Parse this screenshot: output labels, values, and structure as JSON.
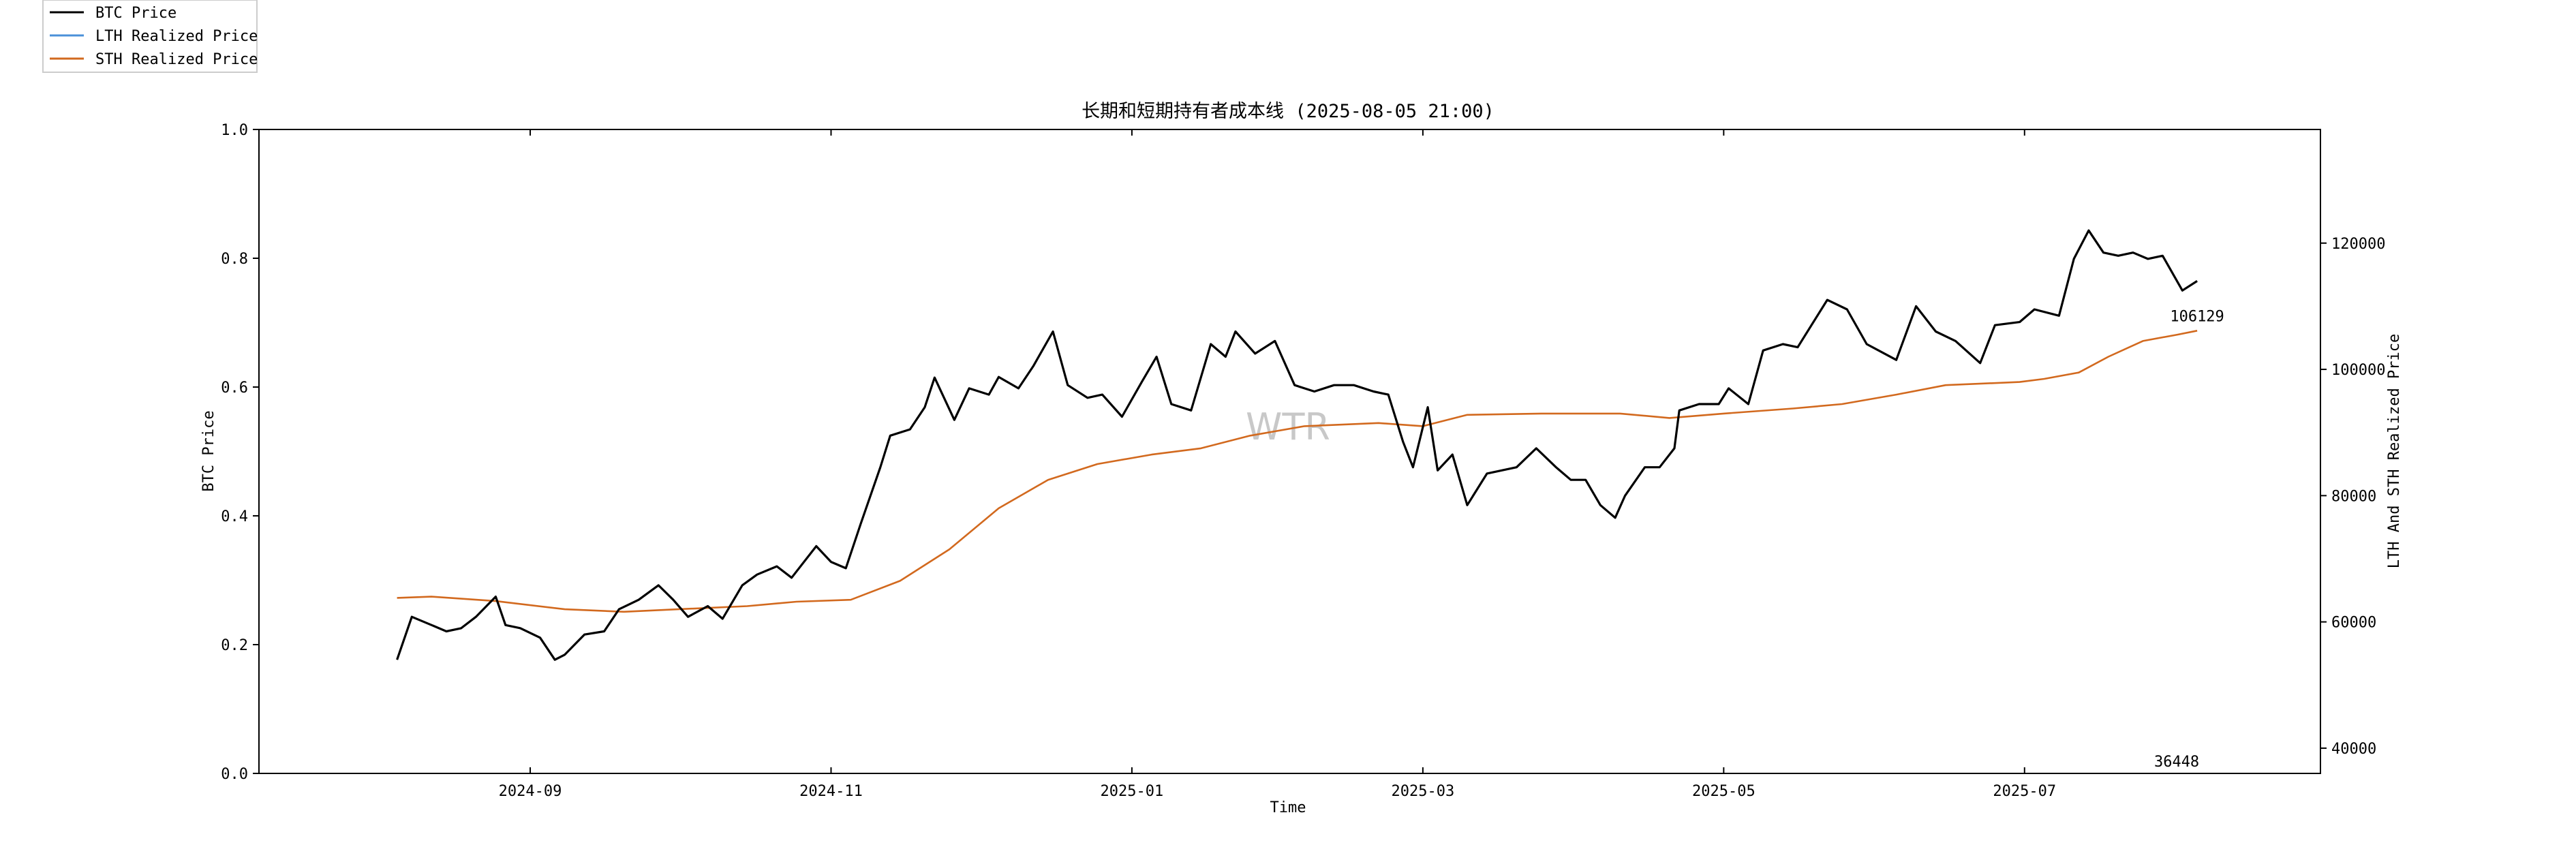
{
  "chart_data": {
    "type": "line",
    "title": "长期和短期持有者成本线 (2025-08-05 21:00)",
    "xlabel": "Time",
    "ylabel": "BTC Price",
    "ylabel_right": "LTH And STH Realized Price",
    "x_range": [
      "2024-07-08",
      "2025-08-30"
    ],
    "x_ticks": [
      "2024-09",
      "2024-11",
      "2025-01",
      "2025-03",
      "2025-05",
      "2025-07"
    ],
    "left_axis": {
      "ylim": [
        0.0,
        1.0
      ],
      "ticks": [
        "0.0",
        "0.2",
        "0.4",
        "0.6",
        "0.8",
        "1.0"
      ]
    },
    "right_axis": {
      "ylim": [
        36000,
        138000
      ],
      "ticks": [
        "40000",
        "60000",
        "80000",
        "100000",
        "120000"
      ]
    },
    "grid": false,
    "legend_position": "top-left",
    "watermark": "WTR",
    "annotations": [
      {
        "text": "106129",
        "series": "STH Realized Price",
        "at": "last-point"
      },
      {
        "text": "36448",
        "series": "LTH Realized Price",
        "at": "last-point"
      }
    ],
    "series": [
      {
        "name": "BTC Price",
        "axis": "right",
        "color": "#000000",
        "points": [
          [
            "2024-08-05",
            54000
          ],
          [
            "2024-08-08",
            60800
          ],
          [
            "2024-08-12",
            59500
          ],
          [
            "2024-08-15",
            58500
          ],
          [
            "2024-08-18",
            59000
          ],
          [
            "2024-08-21",
            60800
          ],
          [
            "2024-08-25",
            64000
          ],
          [
            "2024-08-27",
            59500
          ],
          [
            "2024-08-30",
            59000
          ],
          [
            "2024-09-03",
            57500
          ],
          [
            "2024-09-06",
            54000
          ],
          [
            "2024-09-08",
            54800
          ],
          [
            "2024-09-12",
            58000
          ],
          [
            "2024-09-16",
            58500
          ],
          [
            "2024-09-19",
            62000
          ],
          [
            "2024-09-23",
            63500
          ],
          [
            "2024-09-27",
            65800
          ],
          [
            "2024-09-30",
            63500
          ],
          [
            "2024-10-03",
            60800
          ],
          [
            "2024-10-07",
            62500
          ],
          [
            "2024-10-10",
            60500
          ],
          [
            "2024-10-14",
            65800
          ],
          [
            "2024-10-17",
            67500
          ],
          [
            "2024-10-21",
            68800
          ],
          [
            "2024-10-24",
            67000
          ],
          [
            "2024-10-29",
            72000
          ],
          [
            "2024-11-01",
            69500
          ],
          [
            "2024-11-04",
            68500
          ],
          [
            "2024-11-07",
            75500
          ],
          [
            "2024-11-11",
            84500
          ],
          [
            "2024-11-13",
            89500
          ],
          [
            "2024-11-17",
            90500
          ],
          [
            "2024-11-20",
            94000
          ],
          [
            "2024-11-22",
            98700
          ],
          [
            "2024-11-26",
            92000
          ],
          [
            "2024-11-29",
            97000
          ],
          [
            "2024-12-03",
            96000
          ],
          [
            "2024-12-05",
            98800
          ],
          [
            "2024-12-09",
            97000
          ],
          [
            "2024-12-12",
            100500
          ],
          [
            "2024-12-16",
            106000
          ],
          [
            "2024-12-19",
            97500
          ],
          [
            "2024-12-23",
            95500
          ],
          [
            "2024-12-26",
            96000
          ],
          [
            "2024-12-30",
            92500
          ],
          [
            "2025-01-03",
            98000
          ],
          [
            "2025-01-06",
            102000
          ],
          [
            "2025-01-09",
            94500
          ],
          [
            "2025-01-13",
            93500
          ],
          [
            "2025-01-17",
            104000
          ],
          [
            "2025-01-20",
            102000
          ],
          [
            "2025-01-22",
            106000
          ],
          [
            "2025-01-26",
            102500
          ],
          [
            "2025-01-30",
            104500
          ],
          [
            "2025-02-03",
            97500
          ],
          [
            "2025-02-07",
            96500
          ],
          [
            "2025-02-11",
            97500
          ],
          [
            "2025-02-15",
            97500
          ],
          [
            "2025-02-19",
            96500
          ],
          [
            "2025-02-22",
            96000
          ],
          [
            "2025-02-25",
            88500
          ],
          [
            "2025-02-27",
            84500
          ],
          [
            "2025-03-02",
            94000
          ],
          [
            "2025-03-04",
            84000
          ],
          [
            "2025-03-07",
            86500
          ],
          [
            "2025-03-10",
            78500
          ],
          [
            "2025-03-14",
            83500
          ],
          [
            "2025-03-17",
            84000
          ],
          [
            "2025-03-20",
            84500
          ],
          [
            "2025-03-24",
            87500
          ],
          [
            "2025-03-28",
            84500
          ],
          [
            "2025-03-31",
            82500
          ],
          [
            "2025-04-03",
            82500
          ],
          [
            "2025-04-06",
            78500
          ],
          [
            "2025-04-09",
            76500
          ],
          [
            "2025-04-11",
            80000
          ],
          [
            "2025-04-15",
            84500
          ],
          [
            "2025-04-18",
            84500
          ],
          [
            "2025-04-21",
            87500
          ],
          [
            "2025-04-22",
            93500
          ],
          [
            "2025-04-26",
            94500
          ],
          [
            "2025-04-30",
            94500
          ],
          [
            "2025-05-02",
            97000
          ],
          [
            "2025-05-06",
            94500
          ],
          [
            "2025-05-09",
            103000
          ],
          [
            "2025-05-13",
            104000
          ],
          [
            "2025-05-16",
            103500
          ],
          [
            "2025-05-22",
            111000
          ],
          [
            "2025-05-26",
            109500
          ],
          [
            "2025-05-30",
            104000
          ],
          [
            "2025-06-05",
            101500
          ],
          [
            "2025-06-09",
            110000
          ],
          [
            "2025-06-13",
            106000
          ],
          [
            "2025-06-17",
            104500
          ],
          [
            "2025-06-22",
            101000
          ],
          [
            "2025-06-25",
            107000
          ],
          [
            "2025-06-30",
            107500
          ],
          [
            "2025-07-03",
            109500
          ],
          [
            "2025-07-08",
            108500
          ],
          [
            "2025-07-11",
            117500
          ],
          [
            "2025-07-14",
            122000
          ],
          [
            "2025-07-17",
            118500
          ],
          [
            "2025-07-20",
            118000
          ],
          [
            "2025-07-23",
            118500
          ],
          [
            "2025-07-26",
            117500
          ],
          [
            "2025-07-29",
            118000
          ],
          [
            "2025-08-02",
            112500
          ],
          [
            "2025-08-05",
            114000
          ]
        ]
      },
      {
        "name": "LTH Realized Price",
        "axis": "right",
        "color": "#4a90d9",
        "points": [],
        "last_value": 36448
      },
      {
        "name": "STH Realized Price",
        "axis": "right",
        "color": "#d2691e",
        "points": [
          [
            "2024-08-05",
            63800
          ],
          [
            "2024-08-12",
            64000
          ],
          [
            "2024-08-25",
            63300
          ],
          [
            "2024-09-08",
            62000
          ],
          [
            "2024-09-20",
            61600
          ],
          [
            "2024-10-01",
            62000
          ],
          [
            "2024-10-15",
            62500
          ],
          [
            "2024-10-25",
            63200
          ],
          [
            "2024-11-05",
            63500
          ],
          [
            "2024-11-15",
            66500
          ],
          [
            "2024-11-25",
            71500
          ],
          [
            "2024-12-05",
            78000
          ],
          [
            "2024-12-15",
            82500
          ],
          [
            "2024-12-25",
            85000
          ],
          [
            "2025-01-05",
            86500
          ],
          [
            "2025-01-15",
            87500
          ],
          [
            "2025-01-25",
            89500
          ],
          [
            "2025-02-05",
            91000
          ],
          [
            "2025-02-20",
            91500
          ],
          [
            "2025-03-01",
            91000
          ],
          [
            "2025-03-10",
            92800
          ],
          [
            "2025-03-25",
            93000
          ],
          [
            "2025-04-10",
            93000
          ],
          [
            "2025-04-20",
            92300
          ],
          [
            "2025-05-01",
            93000
          ],
          [
            "2025-05-15",
            93800
          ],
          [
            "2025-05-25",
            94500
          ],
          [
            "2025-06-05",
            96000
          ],
          [
            "2025-06-15",
            97500
          ],
          [
            "2025-06-30",
            98000
          ],
          [
            "2025-07-05",
            98500
          ],
          [
            "2025-07-12",
            99500
          ],
          [
            "2025-07-18",
            102000
          ],
          [
            "2025-07-25",
            104500
          ],
          [
            "2025-08-01",
            105500
          ],
          [
            "2025-08-05",
            106129
          ]
        ]
      }
    ]
  }
}
